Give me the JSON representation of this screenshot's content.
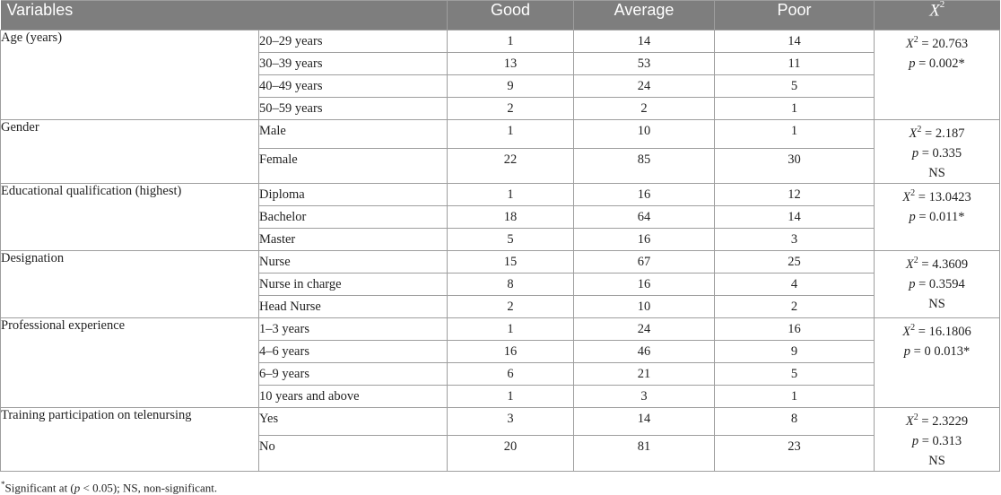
{
  "header": {
    "variables": "Variables",
    "good": "Good",
    "average": "Average",
    "poor": "Poor",
    "chi_symbol": "X",
    "chi_exp": "2"
  },
  "groups": [
    {
      "variable": "Age (years)",
      "stat_x2": "20.763",
      "stat_p": "0.002*",
      "stat_ns": "",
      "rows": [
        {
          "label": "20–29 years",
          "good": "1",
          "average": "14",
          "poor": "14"
        },
        {
          "label": "30–39 years",
          "good": "13",
          "average": "53",
          "poor": "11"
        },
        {
          "label": "40–49 years",
          "good": "9",
          "average": "24",
          "poor": "5"
        },
        {
          "label": "50–59 years",
          "good": "2",
          "average": "2",
          "poor": "1"
        }
      ]
    },
    {
      "variable": "Gender",
      "stat_x2": "2.187",
      "stat_p": "0.335",
      "stat_ns": "NS",
      "rows": [
        {
          "label": "Male",
          "good": "1",
          "average": "10",
          "poor": "1"
        },
        {
          "label": "Female",
          "good": "22",
          "average": "85",
          "poor": "30"
        }
      ]
    },
    {
      "variable": "Educational qualification (highest)",
      "stat_x2": "13.0423",
      "stat_p": "0.011*",
      "stat_ns": "",
      "rows": [
        {
          "label": "Diploma",
          "good": "1",
          "average": "16",
          "poor": "12"
        },
        {
          "label": "Bachelor",
          "good": "18",
          "average": "64",
          "poor": "14"
        },
        {
          "label": "Master",
          "good": "5",
          "average": "16",
          "poor": "3"
        }
      ]
    },
    {
      "variable": "Designation",
      "stat_x2": "4.3609",
      "stat_p": "0.3594",
      "stat_ns": "NS",
      "rows": [
        {
          "label": "Nurse",
          "good": "15",
          "average": "67",
          "poor": "25"
        },
        {
          "label": "Nurse in charge",
          "good": "8",
          "average": "16",
          "poor": "4"
        },
        {
          "label": "Head Nurse",
          "good": "2",
          "average": "10",
          "poor": "2"
        }
      ]
    },
    {
      "variable": "Professional experience",
      "stat_x2": "16.1806",
      "stat_p": "0  0.013*",
      "stat_ns": "",
      "rows": [
        {
          "label": "1–3 years",
          "good": "1",
          "average": "24",
          "poor": "16"
        },
        {
          "label": "4–6 years",
          "good": "16",
          "average": "46",
          "poor": "9"
        },
        {
          "label": "6–9 years",
          "good": "6",
          "average": "21",
          "poor": "5"
        },
        {
          "label": "10 years and above",
          "good": "1",
          "average": "3",
          "poor": "1"
        }
      ]
    },
    {
      "variable": "Training participation on telenursing",
      "stat_x2": "2.3229",
      "stat_p": "0.313",
      "stat_ns": "NS",
      "rows": [
        {
          "label": "Yes",
          "good": "3",
          "average": "14",
          "poor": "8"
        },
        {
          "label": "No",
          "good": "20",
          "average": "81",
          "poor": "23"
        }
      ]
    }
  ],
  "stat_labels": {
    "x": "X",
    "exp": "2",
    "eq": " = ",
    "p": "p",
    "peq": " = "
  },
  "footnote": {
    "star": "*",
    "text_a": "Significant at (",
    "p": "p",
    "text_b": " < 0.05); NS, non-significant."
  }
}
